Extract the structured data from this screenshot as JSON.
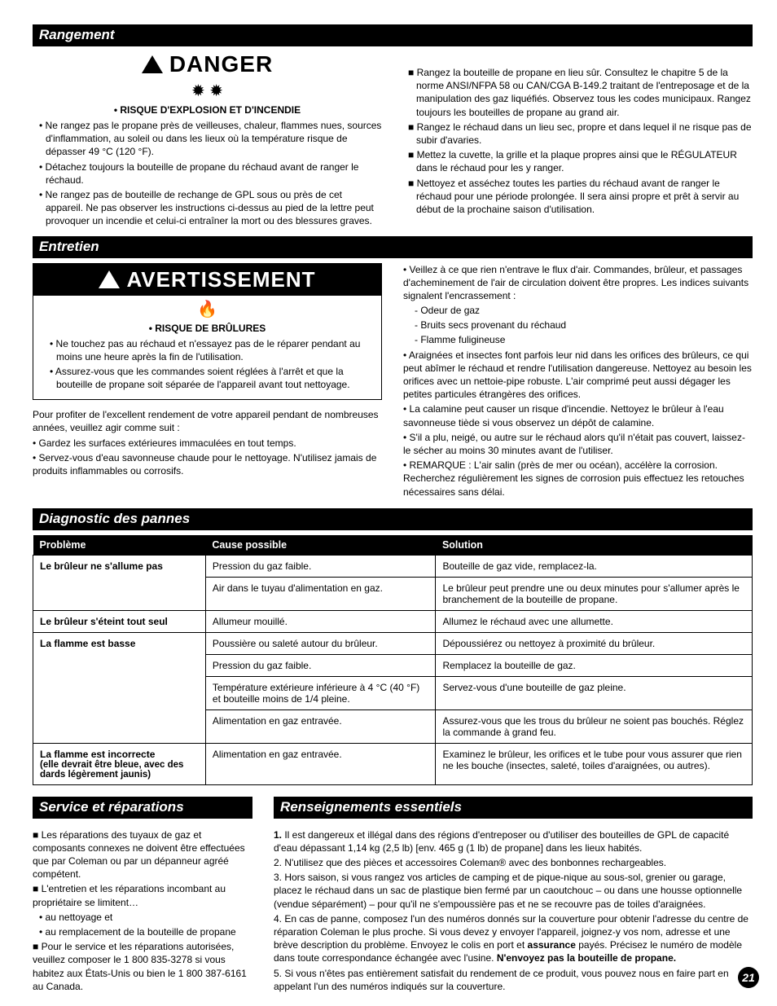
{
  "page_number": "21",
  "sections": {
    "rangement": {
      "title": "Rangement",
      "danger_label": "DANGER",
      "icons": "✹  ✹",
      "subhead": "• RISQUE D'EXPLOSION ET D'INCENDIE",
      "left_bullets": [
        "• Ne rangez pas le propane près de veilleuses, chaleur, flammes nues, sources d'inflammation, au soleil ou dans les lieux où la température risque de dépasser 49 °C (120 °F).",
        "• Détachez toujours la bouteille de propane du réchaud avant de ranger le réchaud.",
        "• Ne rangez pas de bouteille de rechange de GPL sous ou près de cet appareil. Ne pas observer les instructions ci-dessus au pied de la lettre peut provoquer un incendie et celui-ci entraîner la mort ou des blessures graves."
      ],
      "right_bullets": [
        "Rangez la bouteille de propane en lieu sûr. Consultez le chapitre 5 de la norme ANSI/NFPA 58 ou CAN/CGA B-149.2 traitant de l'entreposage et de la manipulation des gaz liquéfiés. Observez tous les codes municipaux. Rangez toujours les bouteilles de propane au grand air.",
        "Rangez le réchaud dans un lieu sec, propre et dans lequel il ne risque pas de subir d'avaries.",
        "Mettez la cuvette, la grille et la plaque propres ainsi que le RÉGULATEUR dans le réchaud pour les y ranger.",
        "Nettoyez et asséchez toutes les parties du réchaud avant de ranger le réchaud pour une période prolongée. Il sera ainsi propre et prêt à servir au début de la prochaine saison d'utilisation."
      ]
    },
    "entretien": {
      "title": "Entretien",
      "avert_label": "AVERTISSEMENT",
      "icon": "🔥",
      "subhead": "• RISQUE DE BRÛLURES",
      "box_bullets": [
        "• Ne touchez pas au réchaud et n'essayez pas de le réparer pendant au moins une heure après la fin de l'utilisation.",
        "• Assurez-vous que les commandes soient réglées à l'arrêt et que la bouteille de propane soit séparée de l'appareil avant tout nettoyage."
      ],
      "below_box": [
        "Pour profiter de l'excellent rendement de votre appareil pendant de nombreuses années, veuillez agir comme suit :",
        "• Gardez les surfaces extérieures immaculées en tout temps.",
        "• Servez-vous d'eau savonneuse chaude pour le nettoyage. N'utilisez jamais de produits inflammables ou corrosifs."
      ],
      "right_col": [
        "• Veillez à ce que rien n'entrave le flux d'air. Commandes, brûleur, et passages d'acheminement de l'air de circulation doivent être propres. Les indices suivants signalent l'encrassement :",
        "  - Odeur de gaz",
        "  - Bruits secs provenant du réchaud",
        "  - Flamme fuligineuse",
        "• Araignées et insectes font parfois leur nid dans les orifices des brûleurs, ce qui peut abîmer le réchaud et rendre l'utilisation dangereuse. Nettoyez au besoin les orifices avec un nettoie-pipe robuste. L'air comprimé peut aussi dégager les petites particules étrangères des orifices.",
        "• La calamine peut causer un risque d'incendie. Nettoyez le brûleur à l'eau savonneuse tiède si vous observez un dépôt de calamine.",
        "• S'il a plu, neigé, ou autre sur le réchaud alors qu'il n'était pas couvert, laissez-le sécher au moins 30 minutes avant de l'utiliser.",
        "• REMARQUE : L'air salin (près de mer ou océan), accélère la corrosion. Recherchez régulièrement les signes de corrosion puis effectuez les retouches nécessaires sans délai."
      ]
    },
    "diagnostic": {
      "title": "Diagnostic des pannes",
      "headers": [
        "Problème",
        "Cause possible",
        "Solution"
      ],
      "rows": [
        {
          "p": "Le brûleur ne s'allume pas",
          "c": "Pression du gaz faible.",
          "s": "Bouteille de gaz vide, remplacez-la.",
          "merge": "top"
        },
        {
          "p": "",
          "c": "Air dans le tuyau d'alimentation en gaz.",
          "s": "Le brûleur peut prendre une ou deux minutes pour s'allumer après le branchement de la bouteille de propane.",
          "merge": "bot"
        },
        {
          "p": "Le brûleur s'éteint tout seul",
          "c": "Allumeur mouillé.",
          "s": "Allumez le réchaud avec une allumette.",
          "merge": ""
        },
        {
          "p": "La flamme est basse",
          "c": "Poussière ou saleté autour du brûleur.",
          "s": "Dépoussiérez ou nettoyez à proximité du brûleur.",
          "merge": "top"
        },
        {
          "p": "",
          "c": "Pression du gaz faible.",
          "s": "Remplacez la bouteille de gaz.",
          "merge": "mid"
        },
        {
          "p": "",
          "c": "Température extérieure inférieure à 4 °C (40 °F) et bouteille moins de 1/4 pleine.",
          "s": "Servez-vous d'une bouteille de gaz pleine.",
          "merge": "mid"
        },
        {
          "p": "",
          "c": "Alimentation en gaz entravée.",
          "s": "Assurez-vous que les trous du brûleur ne soient pas bouchés. Réglez la commande à grand feu.",
          "merge": "bot"
        },
        {
          "p": "La flamme est incorrecte",
          "psub": "(elle devrait être bleue, avec des dards légèrement jaunis)",
          "c": "Alimentation en gaz entravée.",
          "s": "Examinez le brûleur, les orifices et le tube pour vous assurer que rien ne les bouche (insectes, saleté, toiles d'araignées, ou autres).",
          "merge": ""
        }
      ]
    },
    "service": {
      "title": "Service et réparations",
      "paras": [
        "■ Les réparations des tuyaux de gaz et composants connexes ne doivent être effectuées que par Coleman ou par un dépanneur agréé compétent.",
        "■ L'entretien et les réparations incombant au propriétaire se limitent…",
        "  • au nettoyage et",
        "  • au remplacement de la bouteille de propane",
        "■ Pour le service et les réparations autorisées, veuillez composer le 1 800 835-3278 si vous habitez aux États-Unis ou bien le 1 800 387-6161 au Canada."
      ]
    },
    "renseignements": {
      "title": "Renseignements essentiels",
      "p1_lead": "1.",
      "p1": " Il est dangereux et illégal dans des régions d'entreposer ou d'utiliser des bouteilles de GPL de capacité d'eau dépassant 1,14 kg (2,5 lb) [env. 465 g (1 lb) de propane] dans les lieux habités.",
      "p2": "2. N'utilisez que des pièces et accessoires Coleman® avec des bonbonnes rechargeables.",
      "p3": "3. Hors saison, si vous rangez vos articles de camping et de pique-nique au sous-sol, grenier ou garage, placez le réchaud dans un sac de plastique bien fermé par un caoutchouc – ou dans une housse optionnelle (vendue séparément) – pour qu'il ne s'empoussière pas et ne se recouvre pas de toiles d'araignées.",
      "p4a": "4. En cas de panne, composez l'un des numéros donnés sur la couverture pour obtenir l'adresse du centre de réparation Coleman le plus proche. Si vous devez y envoyer l'appareil, joignez-y vos nom, adresse et une brève description du problème. Envoyez le colis en port et ",
      "p4b": "assurance",
      "p4c": " payés. Précisez le numéro de modèle dans toute correspondance échangée avec l'usine. ",
      "p4d": "N'envoyez pas la bouteille de propane.",
      "p5": "5. Si vous n'êtes pas entièrement satisfait du rendement de ce produit, vous pouvez nous en faire part en appelant l'un des numéros indiqués sur la couverture."
    }
  }
}
